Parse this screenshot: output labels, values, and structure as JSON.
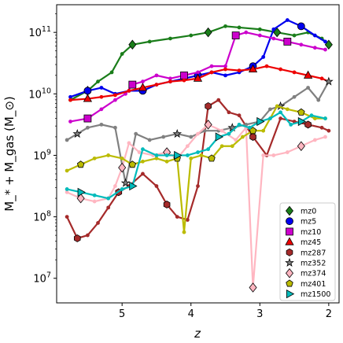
{
  "chart_data": {
    "type": "line",
    "title": "",
    "xlabel": "z",
    "ylabel": "M_* + M_gas (M_⊙)",
    "xlim": [
      5.95,
      1.85
    ],
    "ylim_log10": [
      6.6,
      11.45
    ],
    "x_ticks": [
      5,
      4,
      3,
      2
    ],
    "x_tick_labels": [
      "5",
      "4",
      "3",
      "2"
    ],
    "y_ticks_log10": [
      7,
      8,
      9,
      10,
      11
    ],
    "y_tick_labels": [
      {
        "base": "10",
        "exp": "7"
      },
      {
        "base": "10",
        "exp": "8"
      },
      {
        "base": "10",
        "exp": "9"
      },
      {
        "base": "10",
        "exp": "10"
      },
      {
        "base": "10",
        "exp": "11"
      }
    ],
    "legend_position": "lower-right",
    "series": [
      {
        "name": "mz0",
        "color": "#1a7d1a",
        "marker": "diamond",
        "x": [
          5.75,
          5.5,
          5.35,
          5.15,
          5.0,
          4.85,
          4.6,
          4.3,
          4.0,
          3.75,
          3.5,
          3.3,
          3.0,
          2.75,
          2.5,
          2.3,
          2.1,
          2.0
        ],
        "y_log10": [
          9.9,
          10.05,
          10.2,
          10.35,
          10.65,
          10.8,
          10.85,
          10.9,
          10.95,
          11.0,
          11.1,
          11.08,
          11.05,
          11.0,
          10.95,
          11.0,
          10.9,
          10.8
        ]
      },
      {
        "name": "mz5",
        "color": "#0000ee",
        "marker": "circle",
        "x": [
          5.75,
          5.5,
          5.3,
          5.1,
          4.9,
          4.7,
          4.5,
          4.3,
          4.1,
          3.9,
          3.7,
          3.5,
          3.3,
          3.1,
          2.95,
          2.8,
          2.6,
          2.4,
          2.2,
          2.05
        ],
        "y_log10": [
          9.95,
          10.05,
          10.1,
          10.0,
          10.05,
          10.05,
          10.15,
          10.2,
          10.25,
          10.3,
          10.35,
          10.3,
          10.35,
          10.45,
          10.6,
          11.05,
          11.2,
          11.1,
          10.95,
          10.85
        ]
      },
      {
        "name": "mz10",
        "color": "#cc00cc",
        "marker": "square",
        "x": [
          5.75,
          5.5,
          5.3,
          5.1,
          4.95,
          4.85,
          4.7,
          4.5,
          4.3,
          4.1,
          3.9,
          3.7,
          3.5,
          3.35,
          3.2,
          3.0,
          2.8,
          2.6,
          2.4,
          2.2,
          2.05
        ],
        "y_log10": [
          9.55,
          9.6,
          9.75,
          9.9,
          10.0,
          10.15,
          10.2,
          10.3,
          10.25,
          10.3,
          10.35,
          10.45,
          10.45,
          10.95,
          11.0,
          10.95,
          10.9,
          10.85,
          10.8,
          10.75,
          10.72
        ]
      },
      {
        "name": "mz45",
        "color": "#ee0000",
        "marker": "triangle-up",
        "x": [
          5.75,
          5.5,
          5.3,
          5.1,
          4.9,
          4.7,
          4.5,
          4.3,
          4.1,
          3.9,
          3.7,
          3.5,
          3.3,
          3.1,
          2.9,
          2.7,
          2.5,
          2.3,
          2.1,
          2.0
        ],
        "y_log10": [
          9.9,
          9.92,
          9.95,
          9.98,
          10.05,
          10.1,
          10.15,
          10.2,
          10.22,
          10.25,
          10.35,
          10.4,
          10.38,
          10.4,
          10.45,
          10.4,
          10.35,
          10.3,
          10.25,
          10.2
        ]
      },
      {
        "name": "mz287",
        "color": "#a52a2a",
        "marker": "hexagon",
        "x": [
          5.8,
          5.65,
          5.5,
          5.35,
          5.2,
          5.05,
          4.9,
          4.7,
          4.5,
          4.35,
          4.2,
          4.05,
          3.9,
          3.75,
          3.6,
          3.45,
          3.3,
          3.1,
          2.9,
          2.7,
          2.5,
          2.3,
          2.1,
          2.0
        ],
        "y_log10": [
          8.0,
          7.65,
          7.7,
          7.9,
          8.15,
          8.4,
          8.5,
          8.7,
          8.5,
          8.2,
          8.0,
          7.95,
          8.5,
          9.8,
          9.9,
          9.7,
          9.65,
          9.3,
          9.0,
          9.6,
          9.55,
          9.5,
          9.45,
          9.4
        ]
      },
      {
        "name": "mz352",
        "color": "#808080",
        "marker": "star",
        "x": [
          5.8,
          5.65,
          5.5,
          5.3,
          5.1,
          4.95,
          4.8,
          4.6,
          4.4,
          4.2,
          4.0,
          3.8,
          3.6,
          3.4,
          3.2,
          3.0,
          2.85,
          2.7,
          2.5,
          2.3,
          2.15,
          2.0
        ],
        "y_log10": [
          9.25,
          9.35,
          9.45,
          9.5,
          9.45,
          8.55,
          9.35,
          9.25,
          9.3,
          9.35,
          9.3,
          9.4,
          9.4,
          9.45,
          9.5,
          9.55,
          9.75,
          9.8,
          9.95,
          10.1,
          9.9,
          10.2
        ]
      },
      {
        "name": "mz374",
        "color": "#ffb6c1",
        "marker": "diamond",
        "x": [
          5.8,
          5.6,
          5.4,
          5.2,
          5.1,
          5.0,
          4.9,
          4.75,
          4.55,
          4.35,
          4.2,
          4.05,
          3.9,
          3.75,
          3.55,
          3.35,
          3.2,
          3.1,
          2.95,
          2.8,
          2.6,
          2.4,
          2.2,
          2.05
        ],
        "y_log10": [
          8.4,
          8.3,
          8.25,
          8.3,
          8.5,
          8.8,
          9.2,
          9.05,
          9.0,
          9.05,
          8.95,
          9.15,
          9.35,
          9.5,
          9.4,
          9.25,
          9.45,
          6.85,
          9.0,
          9.0,
          9.05,
          9.15,
          9.25,
          9.3
        ]
      },
      {
        "name": "mz401",
        "color": "#bbbb00",
        "marker": "pentagon",
        "x": [
          5.8,
          5.6,
          5.4,
          5.2,
          5.0,
          4.85,
          4.7,
          4.5,
          4.35,
          4.2,
          4.1,
          4.0,
          3.85,
          3.7,
          3.55,
          3.4,
          3.25,
          3.1,
          2.95,
          2.75,
          2.6,
          2.4,
          2.2,
          2.05
        ],
        "y_log10": [
          8.75,
          8.85,
          8.95,
          9.0,
          8.95,
          8.85,
          8.9,
          8.95,
          8.9,
          8.95,
          7.75,
          8.95,
          9.0,
          8.95,
          9.15,
          9.15,
          9.3,
          9.4,
          9.4,
          9.8,
          9.75,
          9.7,
          9.6,
          9.6
        ]
      },
      {
        "name": "mz1500",
        "color": "#00bbbb",
        "marker": "triangle-right",
        "x": [
          5.8,
          5.6,
          5.4,
          5.2,
          5.0,
          4.85,
          4.7,
          4.5,
          4.35,
          4.2,
          4.05,
          3.9,
          3.75,
          3.6,
          3.45,
          3.3,
          3.15,
          3.0,
          2.85,
          2.7,
          2.55,
          2.4,
          2.25,
          2.05
        ],
        "y_log10": [
          8.45,
          8.4,
          8.35,
          8.3,
          8.45,
          8.5,
          9.1,
          9.0,
          9.0,
          9.0,
          9.0,
          9.05,
          9.1,
          9.3,
          9.35,
          9.5,
          9.45,
          9.55,
          9.6,
          9.7,
          9.5,
          9.55,
          9.65,
          9.6
        ]
      }
    ]
  }
}
